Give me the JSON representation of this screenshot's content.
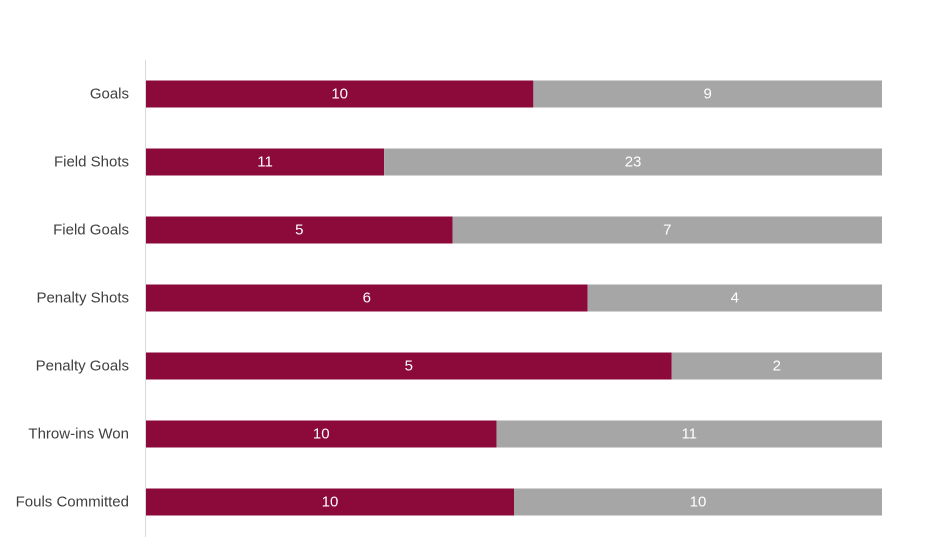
{
  "chart_data": {
    "type": "bar",
    "orientation": "horizontal",
    "stacked": "percent",
    "categories": [
      "Goals",
      "Field Shots",
      "Field Goals",
      "Penalty Shots",
      "Penalty Goals",
      "Throw-ins Won",
      "Fouls Committed"
    ],
    "series": [
      {
        "color": "#8b0a39",
        "values": [
          10,
          11,
          5,
          6,
          5,
          10,
          10
        ]
      },
      {
        "color": "#a6a6a6",
        "values": [
          9,
          23,
          7,
          4,
          2,
          11,
          10
        ]
      }
    ],
    "title": "",
    "xlabel": "",
    "ylabel": "",
    "grid": false,
    "legend": "none",
    "data_labels": true
  }
}
